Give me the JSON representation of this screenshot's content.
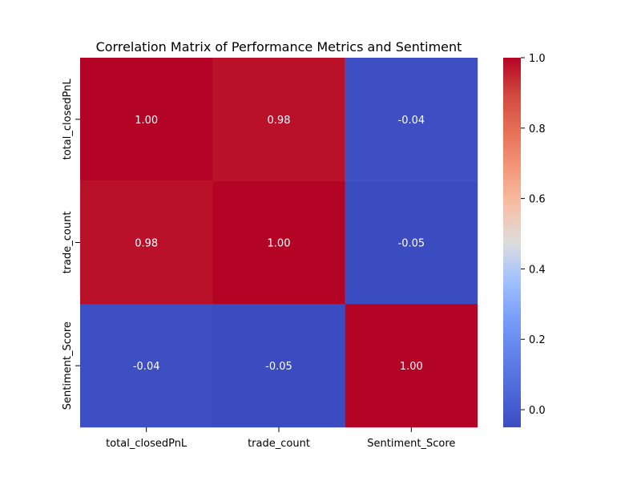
{
  "chart_data": {
    "type": "heatmap",
    "title": "Correlation Matrix of Performance Metrics and Sentiment",
    "x_labels": [
      "total_closedPnL",
      "trade_count",
      "Sentiment_Score"
    ],
    "y_labels": [
      "total_closedPnL",
      "trade_count",
      "Sentiment_Score"
    ],
    "matrix": [
      [
        1.0,
        0.98,
        -0.04
      ],
      [
        0.98,
        1.0,
        -0.05
      ],
      [
        -0.04,
        -0.05,
        1.0
      ]
    ],
    "value_format": "0.00",
    "colormap": "coolwarm",
    "colorbar": {
      "min": -0.05,
      "max": 1.0,
      "ticks": [
        0.0,
        0.2,
        0.4,
        0.6,
        0.8,
        1.0
      ],
      "tick_labels": [
        "0.0",
        "0.2",
        "0.4",
        "0.6",
        "0.8",
        "1.0"
      ]
    },
    "colors": {
      "low": "#3b4cc0",
      "mid": "#dddddd",
      "high": "#b40426",
      "text_light": "#ffffff"
    },
    "grid": false
  }
}
